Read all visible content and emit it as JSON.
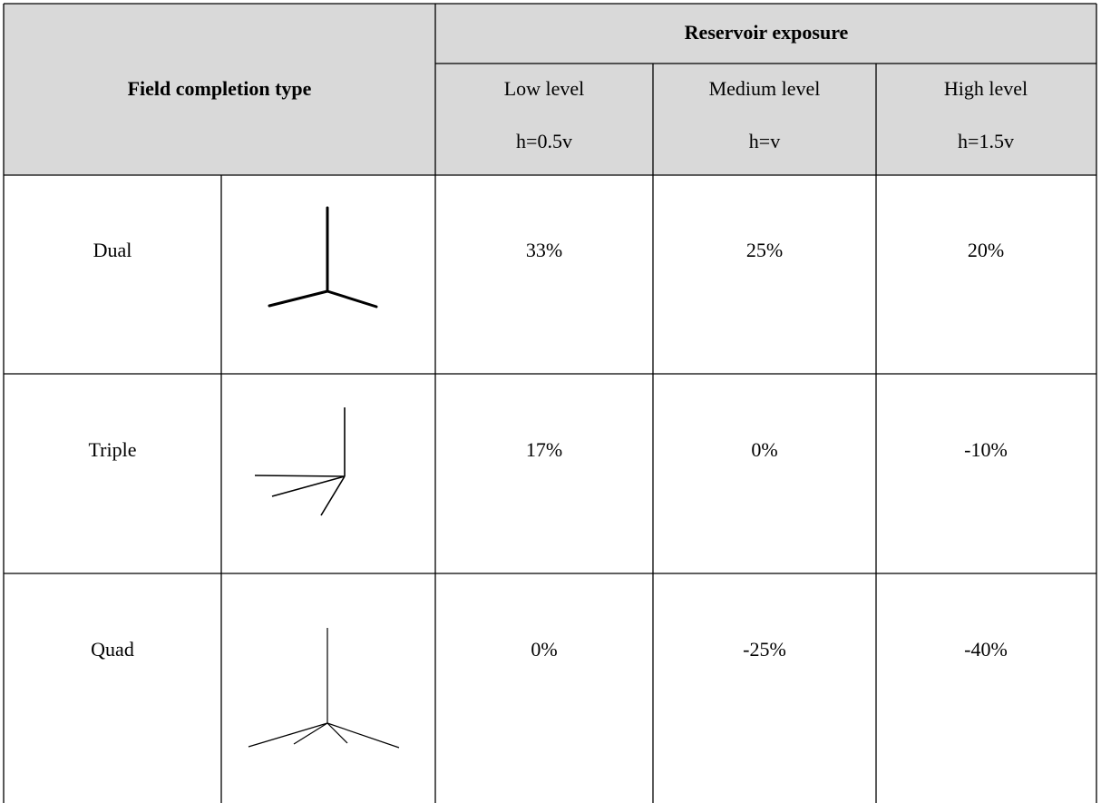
{
  "table": {
    "header": {
      "field_completion_type": "Field completion type",
      "reservoir_exposure": "Reservoir exposure",
      "columns": [
        {
          "level": "Low level",
          "ratio": "h=0.5v"
        },
        {
          "level": "Medium level",
          "ratio": "h=v"
        },
        {
          "level": "High level",
          "ratio": "h=1.5v"
        }
      ]
    },
    "rows": [
      {
        "type": "Dual",
        "values": [
          "33%",
          "25%",
          "20%"
        ]
      },
      {
        "type": "Triple",
        "values": [
          "17%",
          "0%",
          "-10%"
        ]
      },
      {
        "type": "Quad",
        "values": [
          "0%",
          "-25%",
          "-40%"
        ]
      }
    ]
  }
}
